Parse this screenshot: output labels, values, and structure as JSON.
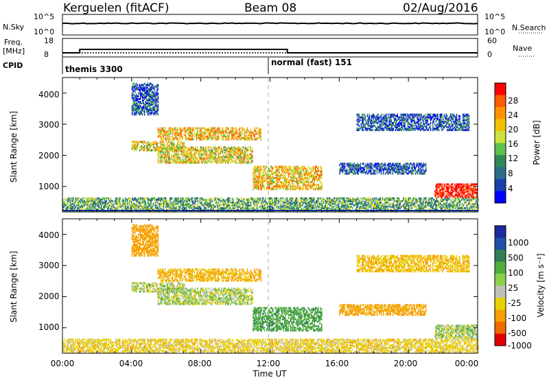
{
  "header": {
    "site": "Kerguelen (fitACF)",
    "beam": "Beam 08",
    "date": "02/Aug/2016"
  },
  "top_panels": {
    "nsky_label": "N.Sky",
    "nsearch_label": "N.Search",
    "noise_ticks": [
      "10^5",
      "10^0"
    ],
    "freq_label_1": "Freq.",
    "freq_label_2": "[MHz]",
    "freq_ticks": [
      "18",
      "8"
    ],
    "nave_label": "Nave",
    "nave_ticks": [
      "60",
      "0"
    ],
    "cpid_label": "CPID",
    "modes": [
      {
        "name": "themis 3300",
        "start_hour": 0
      },
      {
        "name": "normal (fast) 151",
        "start_hour": 12
      }
    ]
  },
  "x_axis": {
    "label": "Time UT",
    "ticks": [
      "00:00",
      "04:00",
      "08:00",
      "12:00",
      "16:00",
      "20:00",
      "00:00"
    ],
    "range_hours": [
      0,
      24
    ]
  },
  "power_panel": {
    "ylabel": "Slant Range [km]",
    "yticks": [
      "4000",
      "3000",
      "2000",
      "1000"
    ],
    "colorbar_label": "Power [dB]",
    "colorbar_ticks": [
      "28",
      "24",
      "20",
      "16",
      "12",
      "8",
      "4"
    ],
    "colors": [
      "#0000ff",
      "#1a3faa",
      "#2b6d8a",
      "#2e8b57",
      "#5fbf4a",
      "#cde23c",
      "#f2c200",
      "#ff9400",
      "#ff5a00",
      "#ff0000"
    ]
  },
  "velocity_panel": {
    "ylabel": "Slant Range [km]",
    "yticks": [
      "4000",
      "3000",
      "2000",
      "1000"
    ],
    "colorbar_label": "Velocity [m s⁻¹]",
    "colorbar_ticks": [
      "1000",
      "500",
      "100",
      "25",
      "-25",
      "-100",
      "-500",
      "-1000"
    ],
    "colors": [
      "#1a2a9c",
      "#1f4fa8",
      "#2f7f56",
      "#4fae3c",
      "#8bd14e",
      "#c0c0b8",
      "#e8d200",
      "#f5a000",
      "#f06a00",
      "#e00000"
    ]
  },
  "chart_data": {
    "type": "heatmap",
    "x_unit": "hours UT",
    "y_unit": "km",
    "xlim": [
      0,
      24
    ],
    "ylim": [
      180,
      4500
    ],
    "frequency_MHz": [
      {
        "start_hour": 0,
        "end_hour": 1,
        "value": 10
      },
      {
        "start_hour": 1,
        "end_hour": 13,
        "value": 12
      },
      {
        "start_hour": 13,
        "end_hour": 24,
        "value": 10
      }
    ],
    "nave": {
      "start_hour": 0,
      "end_hour": 24,
      "value": 12
    },
    "scatter_regions": [
      {
        "t0": 4.0,
        "t1": 7.0,
        "r0": 2150,
        "r1": 2450,
        "power": 18,
        "velocity": -10
      },
      {
        "t0": 5.5,
        "t1": 11.5,
        "r0": 2500,
        "r1": 2900,
        "power": 20,
        "velocity": -120
      },
      {
        "t0": 5.5,
        "t1": 11.0,
        "r0": 1750,
        "r1": 2250,
        "power": 18,
        "velocity": 0
      },
      {
        "t0": 11.0,
        "t1": 15.0,
        "r0": 900,
        "r1": 1650,
        "power": 20,
        "velocity": 80
      },
      {
        "t0": 4.0,
        "t1": 5.5,
        "r0": 3300,
        "r1": 4300,
        "power": 6,
        "velocity": -400
      },
      {
        "t0": 0.0,
        "t1": 24.0,
        "r0": 200,
        "r1": 650,
        "power": 12,
        "velocity": -60
      },
      {
        "t0": 16.0,
        "t1": 21.0,
        "r0": 1400,
        "r1": 1750,
        "power": 6,
        "velocity": -150
      },
      {
        "t0": 21.5,
        "t1": 24.0,
        "r0": 650,
        "r1": 1100,
        "power": 30,
        "velocity": 5
      },
      {
        "t0": 17.0,
        "t1": 23.5,
        "r0": 2800,
        "r1": 3300,
        "power": 6,
        "velocity": -100
      }
    ]
  }
}
